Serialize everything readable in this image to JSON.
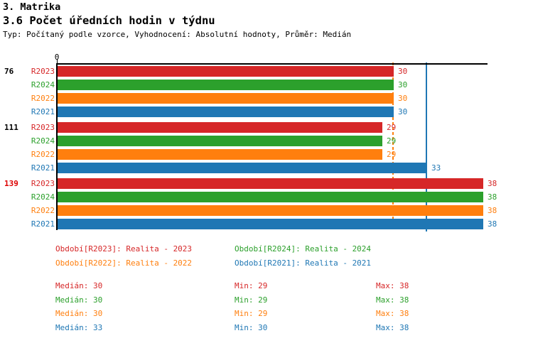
{
  "header": {
    "section_title": "3. Matrika",
    "subtitle": "3.6 Počet úředních hodin v týdnu",
    "meta": "Typ: Počítaný podle vzorce, Vyhodnocení: Absolutní hodnoty, Průměr: Medián"
  },
  "colors": {
    "red": "#d62728",
    "green": "#2ca02c",
    "orange": "#ff7f0e",
    "blue": "#1f77b4",
    "axis": "#000000",
    "group_label_default": "#000000",
    "group_label_highlight": "#dd0000"
  },
  "chart_data": {
    "type": "bar",
    "orientation": "horizontal",
    "x_axis": {
      "min": 0,
      "max": 38.4,
      "tick_labels": [
        "0"
      ],
      "grid": false
    },
    "series_order": [
      "R2023",
      "R2024",
      "R2022",
      "R2021"
    ],
    "series_colors": {
      "R2023": "red",
      "R2024": "green",
      "R2022": "orange",
      "R2021": "blue"
    },
    "groups": [
      {
        "label": "76",
        "highlighted": false,
        "values": {
          "R2023": 30,
          "R2024": 30,
          "R2022": 30,
          "R2021": 30
        }
      },
      {
        "label": "111",
        "highlighted": false,
        "values": {
          "R2023": 29,
          "R2024": 29,
          "R2022": 29,
          "R2021": 33
        }
      },
      {
        "label": "139",
        "highlighted": true,
        "values": {
          "R2023": 38,
          "R2024": 38,
          "R2022": 38,
          "R2021": 38
        }
      }
    ],
    "reference_lines": [
      {
        "name": "median-R2023",
        "value": 30,
        "color_key": "red",
        "style": "dashed"
      },
      {
        "name": "median-R2024",
        "value": 30,
        "color_key": "green",
        "style": "dashed"
      },
      {
        "name": "median-R2022",
        "value": 30,
        "color_key": "orange",
        "style": "dashed"
      },
      {
        "name": "median-R2021",
        "value": 33,
        "color_key": "blue",
        "style": "solid"
      }
    ]
  },
  "legend": {
    "items": [
      {
        "label": "Období[R2023]: Realita - 2023",
        "color_key": "red"
      },
      {
        "label": "Období[R2024]: Realita - 2024",
        "color_key": "green"
      },
      {
        "label": "Období[R2022]: Realita - 2022",
        "color_key": "orange"
      },
      {
        "label": "Období[R2021]: Realita - 2021",
        "color_key": "blue"
      }
    ]
  },
  "stats": {
    "rows": [
      {
        "color_key": "red",
        "median": "Medián: 30",
        "min": "Min: 29",
        "max": "Max: 38"
      },
      {
        "color_key": "green",
        "median": "Medián: 30",
        "min": "Min: 29",
        "max": "Max: 38"
      },
      {
        "color_key": "orange",
        "median": "Medián: 30",
        "min": "Min: 29",
        "max": "Max: 38"
      },
      {
        "color_key": "blue",
        "median": "Medián: 33",
        "min": "Min: 30",
        "max": "Max: 38"
      }
    ]
  }
}
